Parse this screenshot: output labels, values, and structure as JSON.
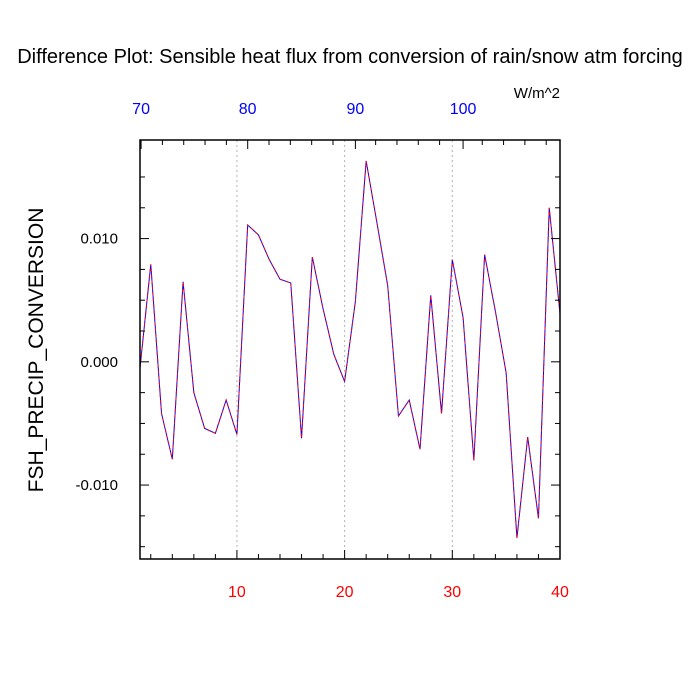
{
  "chart_data": {
    "type": "line",
    "title": "Difference Plot: Sensible heat flux from conversion of rain/snow atm forcing",
    "units_label": "W/m^2",
    "ylabel": "FSH_PRECIP_CONVERSION",
    "xlabel": "",
    "xlim": [
      1,
      40
    ],
    "ylim": [
      -0.016,
      0.018
    ],
    "grid": "vertical dashed lines at bottom major ticks",
    "y_ticks": [
      {
        "value": 0.01,
        "label": "0.010"
      },
      {
        "value": 0.0,
        "label": "0.000"
      },
      {
        "value": -0.01,
        "label": "-0.010"
      }
    ],
    "x_ticks_bottom": [
      {
        "value": 10,
        "label": "10"
      },
      {
        "value": 20,
        "label": "20"
      },
      {
        "value": 30,
        "label": "30"
      },
      {
        "value": 40,
        "label": "40"
      }
    ],
    "x_ticks_top": [
      {
        "value": 1.1,
        "label": "70"
      },
      {
        "value": 11,
        "label": "80"
      },
      {
        "value": 21,
        "label": "90"
      },
      {
        "value": 31,
        "label": "100"
      }
    ],
    "x": [
      1,
      2,
      3,
      4,
      5,
      6,
      7,
      8,
      9,
      10,
      11,
      12,
      13,
      14,
      15,
      16,
      17,
      18,
      19,
      20,
      21,
      22,
      23,
      24,
      25,
      26,
      27,
      28,
      29,
      30,
      31,
      32,
      33,
      34,
      35,
      36,
      37,
      38,
      39,
      40
    ],
    "series": [
      {
        "values": [
          -0.0005,
          0.0079,
          -0.0042,
          -0.0079,
          0.0065,
          -0.0025,
          -0.0054,
          -0.0058,
          -0.0031,
          -0.0059,
          0.0111,
          0.0103,
          0.0083,
          0.0067,
          0.0064,
          -0.0062,
          0.0085,
          0.0043,
          0.0006,
          -0.0016,
          0.0049,
          0.0163,
          0.0113,
          0.0062,
          -0.0044,
          -0.0031,
          -0.0071,
          0.0054,
          -0.0042,
          0.0083,
          0.0036,
          -0.008,
          0.0087,
          0.0041,
          -0.0009,
          -0.0143,
          -0.0061,
          -0.0127,
          0.0125,
          0.0039
        ],
        "colors": [
          "#0000ff",
          "#ff0000"
        ]
      }
    ],
    "colors": {
      "bottom_ticks": "#ff0000",
      "top_ticks": "#0000ff",
      "line_blue": "#0000ff",
      "line_red": "#ff0000",
      "grid": "#b4b4b4",
      "axis": "#000000"
    }
  }
}
